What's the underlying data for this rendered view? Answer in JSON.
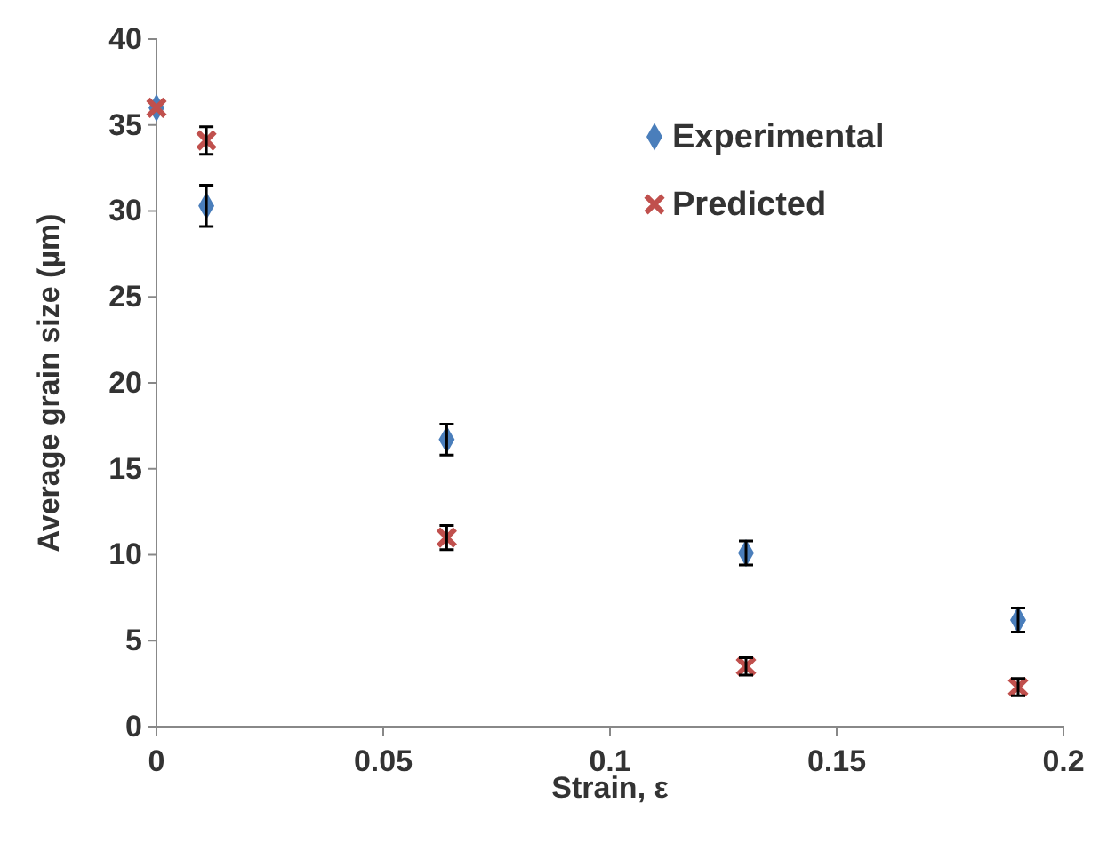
{
  "chart_data": {
    "type": "scatter",
    "xlabel": "Strain, ε",
    "ylabel": "Average grain size (µm)",
    "xlim": [
      0,
      0.2
    ],
    "xticks": [
      0,
      0.05,
      0.1,
      0.15,
      0.2
    ],
    "ylim": [
      0,
      40
    ],
    "yticks": [
      0,
      5,
      10,
      15,
      20,
      25,
      30,
      35,
      40
    ],
    "grid": false,
    "legend": "top right",
    "series": [
      {
        "name": "Experimental",
        "color": "#4a7ebb",
        "marker": "diamond",
        "x": [
          0,
          0.011,
          0.064,
          0.13,
          0.19
        ],
        "values": [
          36,
          30.3,
          16.7,
          10.1,
          6.2
        ],
        "errors": [
          null,
          1.2,
          0.9,
          0.7,
          0.7
        ]
      },
      {
        "name": "Predicted",
        "color": "#c0504d",
        "marker": "cross",
        "x": [
          0,
          0.011,
          0.064,
          0.13,
          0.19
        ],
        "values": [
          36,
          34.1,
          11,
          3.5,
          2.3
        ],
        "errors": [
          null,
          0.8,
          0.7,
          0.5,
          0.5
        ]
      }
    ]
  }
}
